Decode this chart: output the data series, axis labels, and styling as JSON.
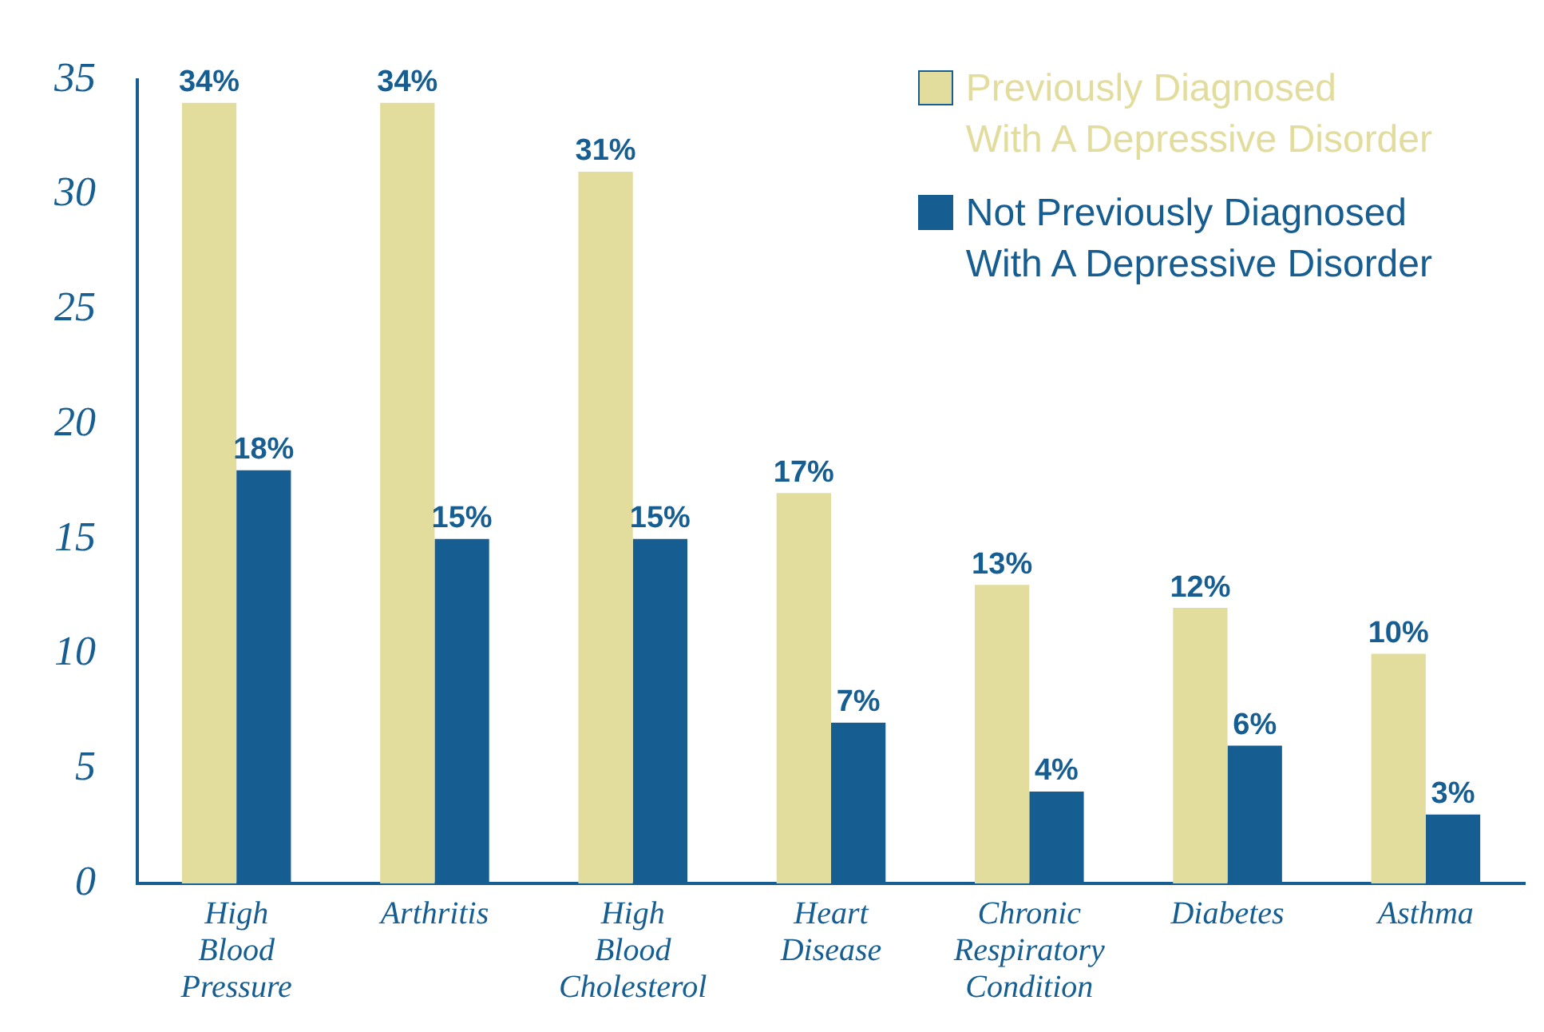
{
  "chart_data": {
    "type": "bar",
    "categories": [
      "High\nBlood\nPressure",
      "Arthritis",
      "High\nBlood\nCholesterol",
      "Heart\nDisease",
      "Chronic\nRespiratory\nCondition",
      "Diabetes",
      "Asthma"
    ],
    "series": [
      {
        "name": "Previously Diagnosed\nWith A Depressive Disorder",
        "color": "#e3dd9d",
        "values": [
          34,
          34,
          31,
          17,
          13,
          12,
          10
        ],
        "value_labels": [
          "34%",
          "34%",
          "31%",
          "17%",
          "13%",
          "12%",
          "10%"
        ]
      },
      {
        "name": "Not Previously Diagnosed\nWith A Depressive Disorder",
        "color": "#165e92",
        "values": [
          18,
          15,
          15,
          7,
          4,
          6,
          3
        ],
        "value_labels": [
          "18%",
          "15%",
          "15%",
          "7%",
          "4%",
          "6%",
          "3%"
        ]
      }
    ],
    "ylim": [
      0,
      35
    ],
    "yticks": [
      0,
      5,
      10,
      15,
      20,
      25,
      30,
      35
    ],
    "grid": false,
    "legend": "top right"
  }
}
